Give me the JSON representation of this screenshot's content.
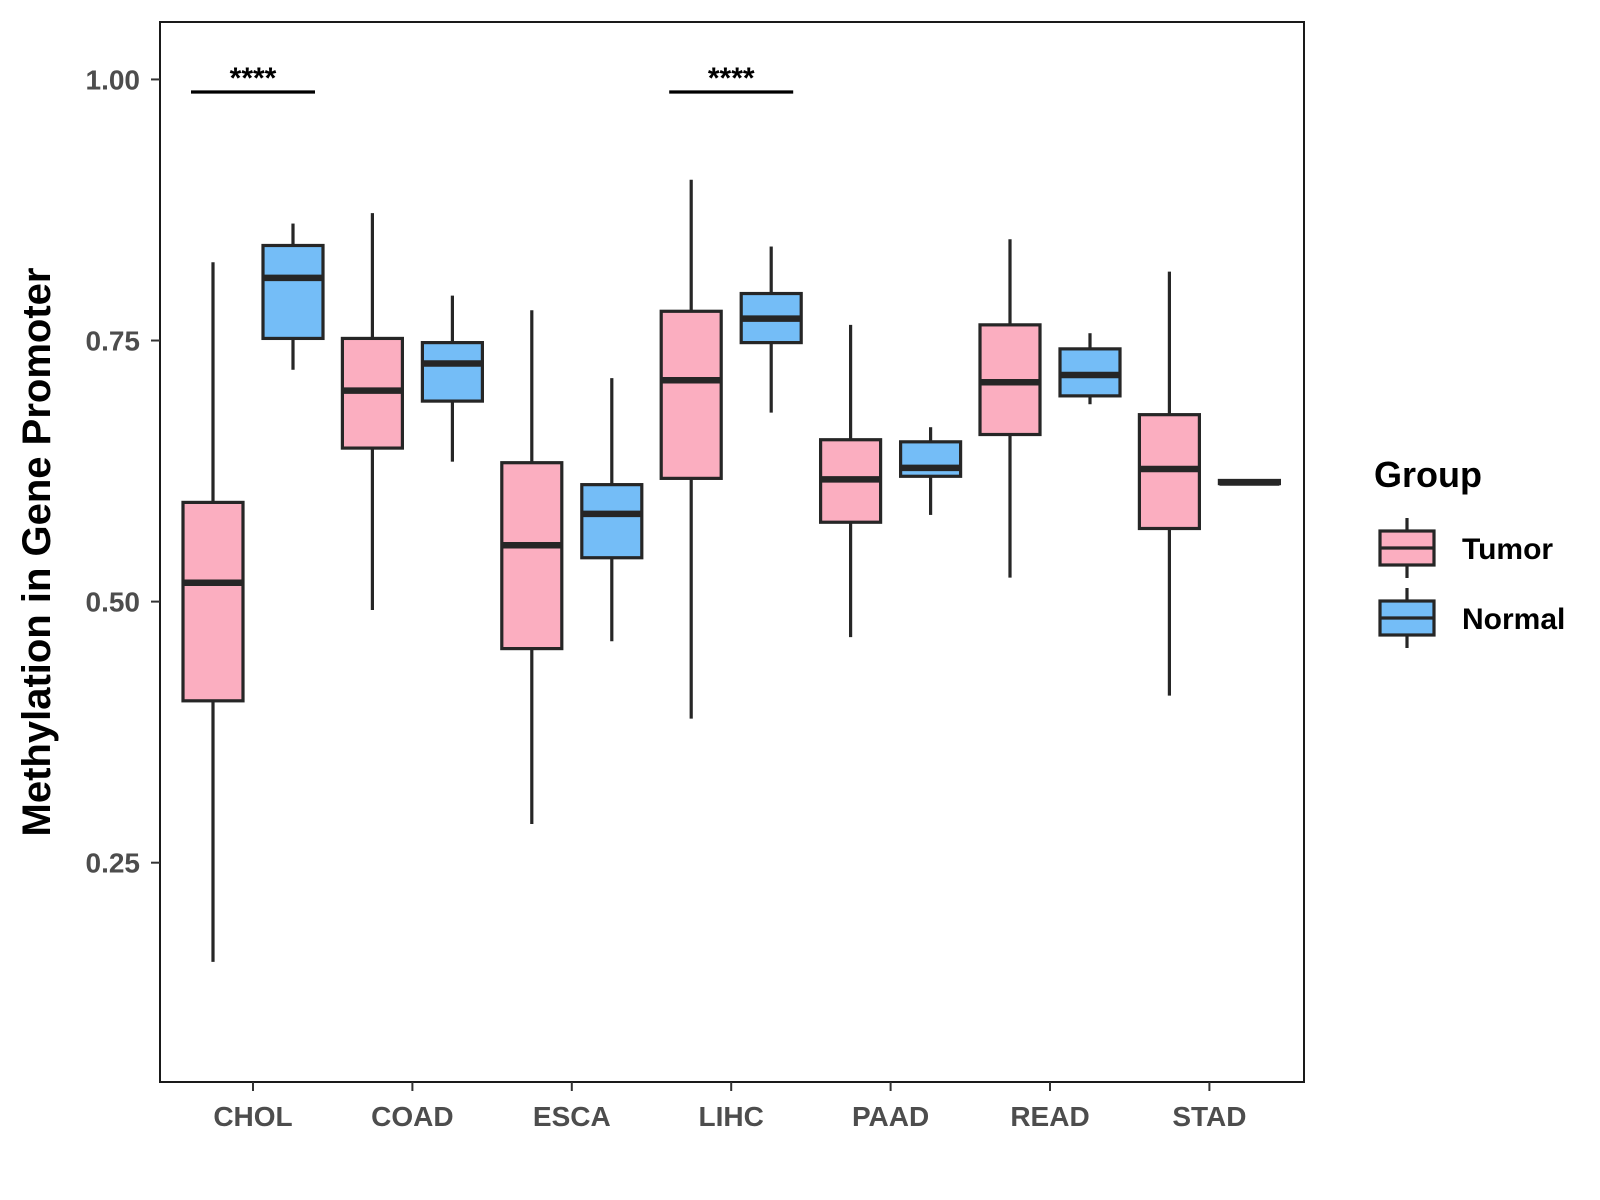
{
  "chart_data": {
    "type": "boxplot",
    "title": "",
    "xlabel": "",
    "ylabel": "Methylation in Gene Promoter",
    "ylim": [
      0.04,
      1.055
    ],
    "yticks": [
      0.25,
      0.5,
      0.75,
      1.0
    ],
    "ytick_labels": [
      "0.25",
      "0.50",
      "0.75",
      "1.00"
    ],
    "categories": [
      "CHOL",
      "COAD",
      "ESCA",
      "LIHC",
      "PAAD",
      "READ",
      "STAD"
    ],
    "legend": {
      "title": "Group",
      "position": "right",
      "entries": [
        {
          "name": "Tumor",
          "color": "#FBAEC0"
        },
        {
          "name": "Normal",
          "color": "#74BDF7"
        }
      ]
    },
    "series": [
      {
        "name": "Tumor",
        "color": "#FBAEC0",
        "boxes": [
          {
            "category": "CHOL",
            "whisker_low": 0.155,
            "q1": 0.405,
            "median": 0.518,
            "q3": 0.595,
            "whisker_high": 0.825
          },
          {
            "category": "COAD",
            "whisker_low": 0.492,
            "q1": 0.647,
            "median": 0.702,
            "q3": 0.752,
            "whisker_high": 0.872
          },
          {
            "category": "ESCA",
            "whisker_low": 0.287,
            "q1": 0.455,
            "median": 0.554,
            "q3": 0.633,
            "whisker_high": 0.779
          },
          {
            "category": "LIHC",
            "whisker_low": 0.388,
            "q1": 0.618,
            "median": 0.712,
            "q3": 0.778,
            "whisker_high": 0.904
          },
          {
            "category": "PAAD",
            "whisker_low": 0.466,
            "q1": 0.576,
            "median": 0.617,
            "q3": 0.655,
            "whisker_high": 0.765
          },
          {
            "category": "READ",
            "whisker_low": 0.523,
            "q1": 0.66,
            "median": 0.71,
            "q3": 0.765,
            "whisker_high": 0.847
          },
          {
            "category": "STAD",
            "whisker_low": 0.41,
            "q1": 0.57,
            "median": 0.627,
            "q3": 0.679,
            "whisker_high": 0.816
          }
        ]
      },
      {
        "name": "Normal",
        "color": "#74BDF7",
        "boxes": [
          {
            "category": "CHOL",
            "whisker_low": 0.722,
            "q1": 0.752,
            "median": 0.81,
            "q3": 0.841,
            "whisker_high": 0.862
          },
          {
            "category": "COAD",
            "whisker_low": 0.634,
            "q1": 0.692,
            "median": 0.728,
            "q3": 0.748,
            "whisker_high": 0.793
          },
          {
            "category": "ESCA",
            "whisker_low": 0.462,
            "q1": 0.542,
            "median": 0.584,
            "q3": 0.612,
            "whisker_high": 0.714
          },
          {
            "category": "LIHC",
            "whisker_low": 0.681,
            "q1": 0.748,
            "median": 0.771,
            "q3": 0.795,
            "whisker_high": 0.84
          },
          {
            "category": "PAAD",
            "whisker_low": 0.583,
            "q1": 0.62,
            "median": 0.628,
            "q3": 0.653,
            "whisker_high": 0.667
          },
          {
            "category": "READ",
            "whisker_low": 0.689,
            "q1": 0.697,
            "median": 0.717,
            "q3": 0.742,
            "whisker_high": 0.757
          },
          {
            "category": "STAD",
            "whisker_low": 0.613,
            "q1": 0.613,
            "median": 0.614,
            "q3": 0.616,
            "whisker_high": 0.616
          }
        ]
      }
    ],
    "annotations": [
      {
        "category": "CHOL",
        "text": "****",
        "y": 0.988
      },
      {
        "category": "LIHC",
        "text": "****",
        "y": 0.988
      }
    ]
  }
}
